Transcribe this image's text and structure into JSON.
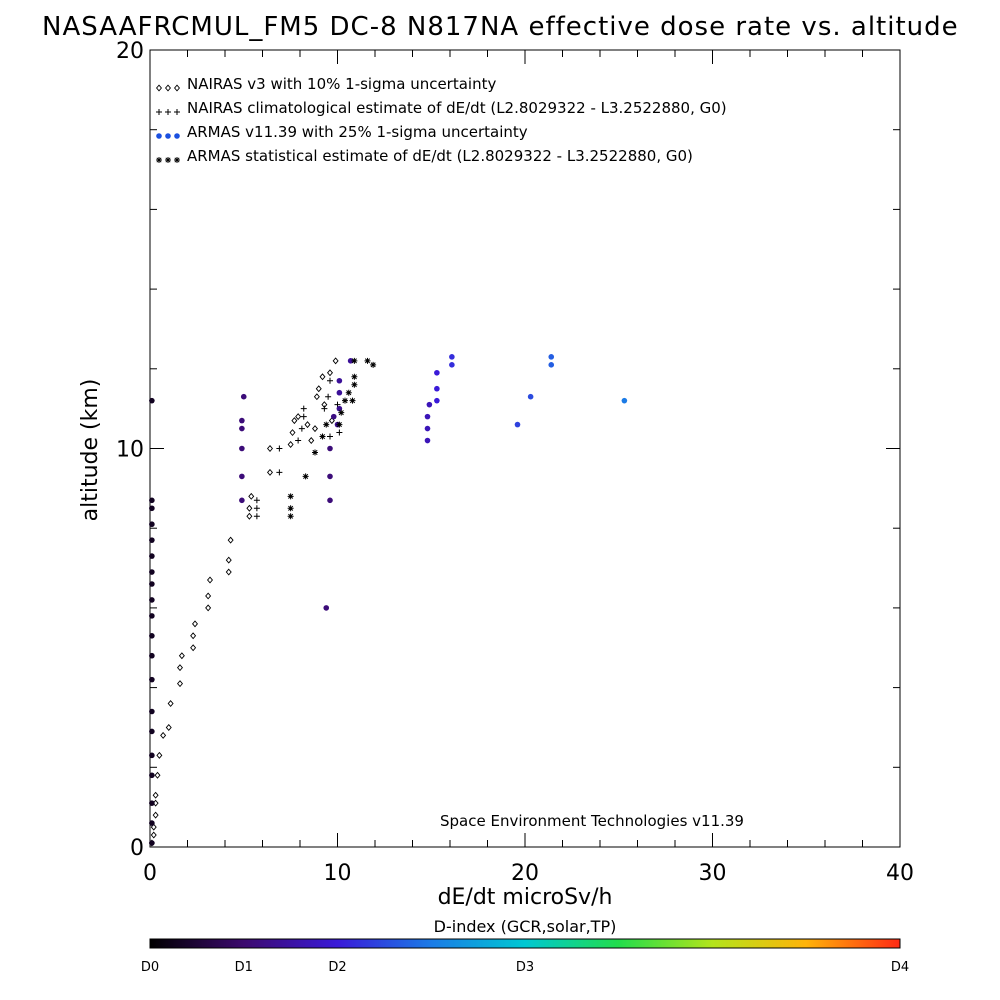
{
  "title": "NASAAFRCMUL_FM5 DC-8   N817NA effective dose rate vs. altitude",
  "credit": "Space Environment Technologies v11.39",
  "colorbar": {
    "title": "D-index (GCR,solar,TP)",
    "labels": [
      "D0",
      "D1",
      "D2",
      "D3",
      "D4"
    ],
    "label_values": [
      0,
      1,
      2,
      4,
      8
    ],
    "max_value": 8
  },
  "chart_data": {
    "type": "scatter",
    "xlabel": "dE/dt microSv/h",
    "ylabel": "altitude (km)",
    "xlim": [
      0,
      40
    ],
    "ylim": [
      0,
      20
    ],
    "xticks": [
      0,
      10,
      20,
      30,
      40
    ],
    "yticks": [
      0,
      10,
      20
    ],
    "legend_position": "top-left",
    "series": [
      {
        "name": "NAIRAS v3 with 10% 1-sigma uncertainty",
        "marker": "diamond",
        "color": "#000000",
        "points": [
          [
            0.1,
            0.1
          ],
          [
            0.2,
            0.3
          ],
          [
            0.2,
            0.5
          ],
          [
            0.3,
            0.8
          ],
          [
            0.3,
            1.1
          ],
          [
            0.3,
            1.3
          ],
          [
            0.4,
            1.8
          ],
          [
            0.5,
            2.3
          ],
          [
            0.7,
            2.8
          ],
          [
            1.0,
            3.0
          ],
          [
            1.1,
            3.6
          ],
          [
            1.6,
            4.1
          ],
          [
            1.6,
            4.5
          ],
          [
            1.7,
            4.8
          ],
          [
            2.3,
            5.0
          ],
          [
            2.3,
            5.3
          ],
          [
            2.4,
            5.6
          ],
          [
            3.1,
            6.0
          ],
          [
            3.1,
            6.3
          ],
          [
            3.2,
            6.7
          ],
          [
            4.2,
            6.9
          ],
          [
            4.2,
            7.2
          ],
          [
            4.3,
            7.7
          ],
          [
            5.3,
            8.5
          ],
          [
            5.3,
            8.3
          ],
          [
            5.4,
            8.8
          ],
          [
            6.4,
            9.4
          ],
          [
            6.4,
            10.0
          ],
          [
            7.5,
            10.1
          ],
          [
            7.6,
            10.4
          ],
          [
            7.7,
            10.7
          ],
          [
            7.9,
            10.8
          ],
          [
            8.4,
            10.6
          ],
          [
            8.6,
            10.2
          ],
          [
            8.8,
            10.5
          ],
          [
            8.9,
            11.3
          ],
          [
            9.0,
            11.5
          ],
          [
            9.2,
            11.8
          ],
          [
            9.3,
            11.1
          ],
          [
            9.6,
            11.9
          ],
          [
            9.7,
            10.7
          ],
          [
            9.9,
            12.2
          ]
        ]
      },
      {
        "name": "NAIRAS climatological estimate of dE/dt (L2.8029322 - L3.2522880, G0)",
        "marker": "plus",
        "color": "#000000",
        "points": [
          [
            5.7,
            8.3
          ],
          [
            5.7,
            8.5
          ],
          [
            5.7,
            8.7
          ],
          [
            6.9,
            9.4
          ],
          [
            6.9,
            10.0
          ],
          [
            7.9,
            10.2
          ],
          [
            8.1,
            10.5
          ],
          [
            8.2,
            10.8
          ],
          [
            8.2,
            11.0
          ],
          [
            9.3,
            11.0
          ],
          [
            9.5,
            11.3
          ],
          [
            9.6,
            11.7
          ],
          [
            9.6,
            10.3
          ],
          [
            10.0,
            11.1
          ],
          [
            10.1,
            10.4
          ]
        ]
      },
      {
        "name": "ARMAS v11.39 with 25% 1-sigma uncertainty",
        "marker": "dot",
        "colored_by": "D-index",
        "points": [
          [
            0.1,
            0.1,
            0.3
          ],
          [
            0.1,
            0.6,
            0.3
          ],
          [
            0.1,
            1.1,
            0.3
          ],
          [
            0.1,
            1.8,
            0.3
          ],
          [
            0.1,
            2.3,
            0.3
          ],
          [
            0.1,
            2.9,
            0.3
          ],
          [
            0.1,
            3.4,
            0.3
          ],
          [
            0.1,
            4.2,
            0.3
          ],
          [
            0.1,
            4.8,
            0.3
          ],
          [
            0.1,
            5.3,
            0.3
          ],
          [
            0.1,
            5.8,
            0.3
          ],
          [
            0.1,
            6.2,
            0.3
          ],
          [
            0.1,
            6.6,
            0.3
          ],
          [
            0.1,
            6.9,
            0.3
          ],
          [
            0.1,
            7.3,
            0.3
          ],
          [
            0.1,
            7.7,
            0.3
          ],
          [
            0.1,
            8.1,
            0.3
          ],
          [
            0.1,
            8.5,
            0.3
          ],
          [
            0.1,
            8.7,
            0.3
          ],
          [
            0.1,
            11.2,
            0.3
          ],
          [
            4.9,
            8.7,
            1.1
          ],
          [
            4.9,
            9.3,
            1.1
          ],
          [
            4.9,
            10.0,
            1.1
          ],
          [
            4.9,
            10.5,
            1.1
          ],
          [
            4.9,
            10.7,
            1.1
          ],
          [
            5.0,
            11.3,
            1.1
          ],
          [
            9.4,
            6.0,
            1.1
          ],
          [
            9.6,
            8.7,
            1.1
          ],
          [
            9.6,
            9.3,
            1.1
          ],
          [
            9.6,
            10.0,
            1.1
          ],
          [
            9.8,
            10.8,
            1.2
          ],
          [
            10.0,
            10.6,
            1.3
          ],
          [
            10.1,
            11.0,
            1.3
          ],
          [
            10.1,
            11.4,
            1.4
          ],
          [
            10.1,
            11.7,
            1.4
          ],
          [
            10.7,
            12.2,
            1.4
          ],
          [
            14.8,
            10.2,
            1.7
          ],
          [
            14.8,
            10.5,
            1.7
          ],
          [
            14.8,
            10.8,
            1.7
          ],
          [
            14.9,
            11.1,
            1.7
          ],
          [
            15.3,
            11.2,
            2.0
          ],
          [
            15.3,
            11.5,
            2.0
          ],
          [
            15.3,
            11.9,
            2.0
          ],
          [
            16.1,
            12.1,
            2.2
          ],
          [
            16.1,
            12.3,
            2.2
          ],
          [
            19.6,
            10.6,
            2.4
          ],
          [
            20.3,
            11.3,
            2.5
          ],
          [
            21.4,
            12.1,
            2.7
          ],
          [
            21.4,
            12.3,
            2.7
          ],
          [
            25.3,
            11.2,
            3.0
          ]
        ]
      },
      {
        "name": "ARMAS statistical estimate of dE/dt (L2.8029322 - L3.2522880, G0)",
        "marker": "asterisk",
        "color": "#000000",
        "points": [
          [
            7.5,
            8.3
          ],
          [
            7.5,
            8.5
          ],
          [
            7.5,
            8.8
          ],
          [
            8.3,
            9.3
          ],
          [
            8.8,
            9.9
          ],
          [
            9.2,
            10.3
          ],
          [
            9.4,
            10.6
          ],
          [
            10.1,
            10.6
          ],
          [
            10.2,
            10.9
          ],
          [
            10.4,
            11.2
          ],
          [
            10.6,
            11.4
          ],
          [
            10.8,
            11.2
          ],
          [
            10.9,
            11.6
          ],
          [
            10.9,
            11.8
          ],
          [
            10.9,
            12.2
          ],
          [
            11.6,
            12.2
          ],
          [
            11.9,
            12.1
          ]
        ]
      }
    ]
  }
}
